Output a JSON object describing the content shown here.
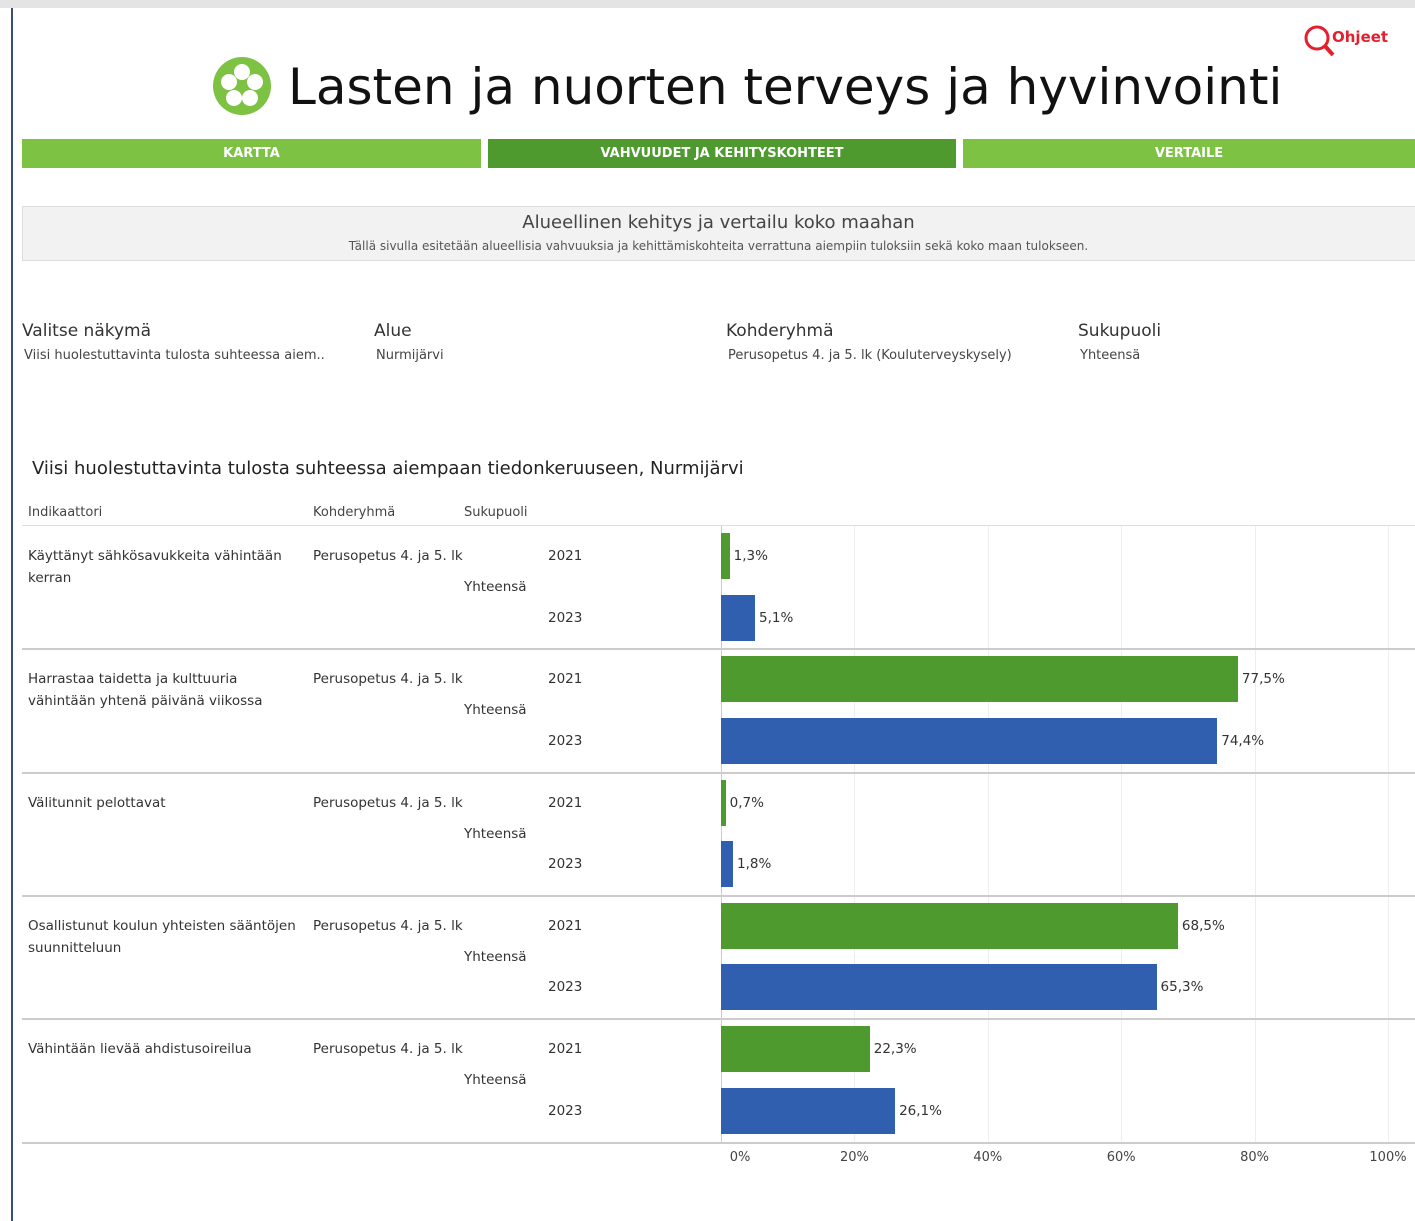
{
  "header": {
    "title": "Lasten ja nuorten terveys ja hyvinvointi",
    "help": "Ohjeet"
  },
  "nav": [
    "KARTTA",
    "VAHVUUDET JA KEHITYSKOHTEET",
    "VERTAILE"
  ],
  "info": {
    "title": "Alueellinen kehitys ja vertailu koko maahan",
    "text": "Tällä sivulla esitetään alueellisia vahvuuksia ja kehittämiskohteita verrattuna aiempiin tuloksiin sekä koko maan tulokseen."
  },
  "filters": [
    {
      "label": "Valitse näkymä",
      "value": "Viisi huolestuttavinta tulosta suhteessa aiem.."
    },
    {
      "label": "Alue",
      "value": "Nurmijärvi"
    },
    {
      "label": "Kohderyhmä",
      "value": "Perusopetus 4. ja 5. lk (Kouluterveyskysely)"
    },
    {
      "label": "Sukupuoli",
      "value": "Yhteensä"
    }
  ],
  "chart_data": {
    "type": "bar",
    "orientation": "horizontal",
    "title": "Viisi huolestuttavinta tulosta suhteessa aiempaan tiedonkeruuseen, Nurmijärvi",
    "columns": [
      "Indikaattori",
      "Kohderyhmä",
      "Sukupuoli"
    ],
    "categories": [
      "Käyttänyt sähkösavukkeita vähintään kerran",
      "Harrastaa taidetta ja kulttuuria vähintään yhtenä päivänä viikossa",
      "Välitunnit pelottavat",
      "Osallistunut koulun yhteisten sääntöjen suunnitteluun",
      "Vähintään lievää ahdistusoireilua"
    ],
    "target_groups": [
      "Perusopetus 4. ja 5. lk",
      "Perusopetus 4. ja 5. lk",
      "Perusopetus 4. ja 5. lk",
      "Perusopetus 4. ja 5. lk",
      "Perusopetus 4. ja 5. lk"
    ],
    "genders": [
      "Yhteensä",
      "Yhteensä",
      "Yhteensä",
      "Yhteensä",
      "Yhteensä"
    ],
    "series": [
      {
        "name": "2021",
        "color": "#4e9a2e",
        "values": [
          1.3,
          77.5,
          0.7,
          68.5,
          22.3
        ],
        "value_labels": [
          "1,3%",
          "77,5%",
          "0,7%",
          "68,5%",
          "22,3%"
        ]
      },
      {
        "name": "2023",
        "color": "#2f5fae",
        "values": [
          5.1,
          74.4,
          1.8,
          65.3,
          26.1
        ],
        "value_labels": [
          "5,1%",
          "74,4%",
          "1,8%",
          "65,3%",
          "26,1%"
        ]
      }
    ],
    "xlim": [
      0,
      100
    ],
    "xticks": [
      {
        "value": 0,
        "label": "0%"
      },
      {
        "value": 20,
        "label": "20%"
      },
      {
        "value": 40,
        "label": "40%"
      },
      {
        "value": 60,
        "label": "60%"
      },
      {
        "value": 80,
        "label": "80%"
      },
      {
        "value": 100,
        "label": "100%"
      }
    ],
    "grid": true
  }
}
